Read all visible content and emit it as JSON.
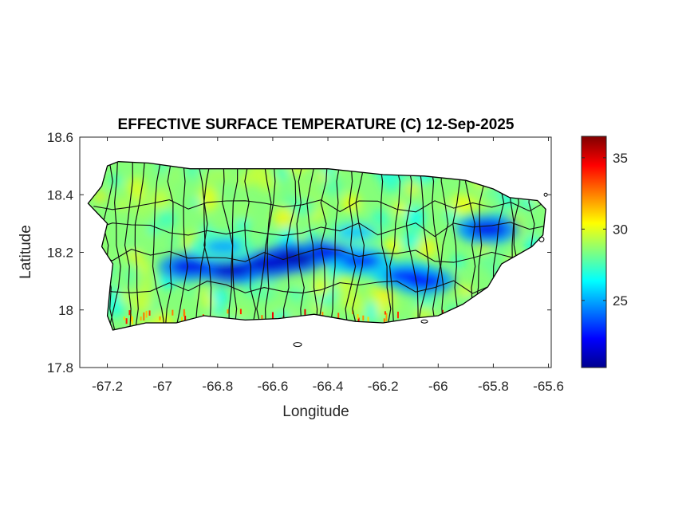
{
  "chart_data": {
    "type": "heatmap",
    "title": "EFFECTIVE SURFACE TEMPERATURE (C) 12-Sep-2025",
    "xlabel": "Longitude",
    "ylabel": "Latitude",
    "xlim": [
      -67.3,
      -65.59
    ],
    "ylim": [
      17.8,
      18.6
    ],
    "x_ticks": [
      -67.2,
      -67,
      -66.8,
      -66.6,
      -66.4,
      -66.2,
      -66,
      -65.8,
      -65.6
    ],
    "x_tick_labels": [
      "-67.2",
      "-67",
      "-66.8",
      "-66.6",
      "-66.4",
      "-66.2",
      "-66",
      "-65.8",
      "-65.6"
    ],
    "y_ticks": [
      17.8,
      18,
      18.2,
      18.4,
      18.6
    ],
    "y_tick_labels": [
      "17.8",
      "18",
      "18.2",
      "18.4",
      "18.6"
    ],
    "colorbar": {
      "colormap": "jet",
      "range": [
        20.3,
        36.5
      ],
      "ticks": [
        25,
        30,
        35
      ],
      "tick_labels": [
        "25",
        "30",
        "35"
      ]
    },
    "island_outline": [
      [
        -67.27,
        18.37
      ],
      [
        -67.22,
        18.43
      ],
      [
        -67.2,
        18.5
      ],
      [
        -67.16,
        18.515
      ],
      [
        -67.05,
        18.51
      ],
      [
        -66.9,
        18.49
      ],
      [
        -66.75,
        18.49
      ],
      [
        -66.6,
        18.49
      ],
      [
        -66.4,
        18.49
      ],
      [
        -66.2,
        18.47
      ],
      [
        -66.05,
        18.465
      ],
      [
        -65.9,
        18.45
      ],
      [
        -65.8,
        18.42
      ],
      [
        -65.74,
        18.39
      ],
      [
        -65.64,
        18.38
      ],
      [
        -65.61,
        18.35
      ],
      [
        -65.62,
        18.26
      ],
      [
        -65.66,
        18.22
      ],
      [
        -65.77,
        18.16
      ],
      [
        -65.82,
        18.08
      ],
      [
        -65.91,
        18.02
      ],
      [
        -66.0,
        17.98
      ],
      [
        -66.1,
        17.97
      ],
      [
        -66.2,
        17.955
      ],
      [
        -66.3,
        17.96
      ],
      [
        -66.45,
        17.985
      ],
      [
        -66.58,
        17.97
      ],
      [
        -66.7,
        17.965
      ],
      [
        -66.85,
        17.98
      ],
      [
        -66.95,
        17.955
      ],
      [
        -67.06,
        17.955
      ],
      [
        -67.18,
        17.93
      ],
      [
        -67.2,
        17.98
      ],
      [
        -67.19,
        18.08
      ],
      [
        -67.18,
        18.16
      ],
      [
        -67.22,
        18.22
      ],
      [
        -67.2,
        18.3
      ],
      [
        -67.27,
        18.37
      ]
    ],
    "cool_ridges": [
      {
        "lon": -66.9,
        "lat": 18.15,
        "temp": 22
      },
      {
        "lon": -66.75,
        "lat": 18.14,
        "temp": 21.5
      },
      {
        "lon": -66.62,
        "lat": 18.16,
        "temp": 21.5
      },
      {
        "lon": -66.52,
        "lat": 18.18,
        "temp": 21
      },
      {
        "lon": -66.4,
        "lat": 18.2,
        "temp": 22
      },
      {
        "lon": -66.28,
        "lat": 18.17,
        "temp": 23
      },
      {
        "lon": -66.12,
        "lat": 18.12,
        "temp": 23
      },
      {
        "lon": -66.05,
        "lat": 18.1,
        "temp": 22.5
      },
      {
        "lon": -65.82,
        "lat": 18.28,
        "temp": 22
      },
      {
        "lon": -66.78,
        "lat": 18.22,
        "temp": 25
      },
      {
        "lon": -66.3,
        "lat": 18.27,
        "temp": 25.5
      }
    ],
    "baseline_temp": 28.5
  }
}
